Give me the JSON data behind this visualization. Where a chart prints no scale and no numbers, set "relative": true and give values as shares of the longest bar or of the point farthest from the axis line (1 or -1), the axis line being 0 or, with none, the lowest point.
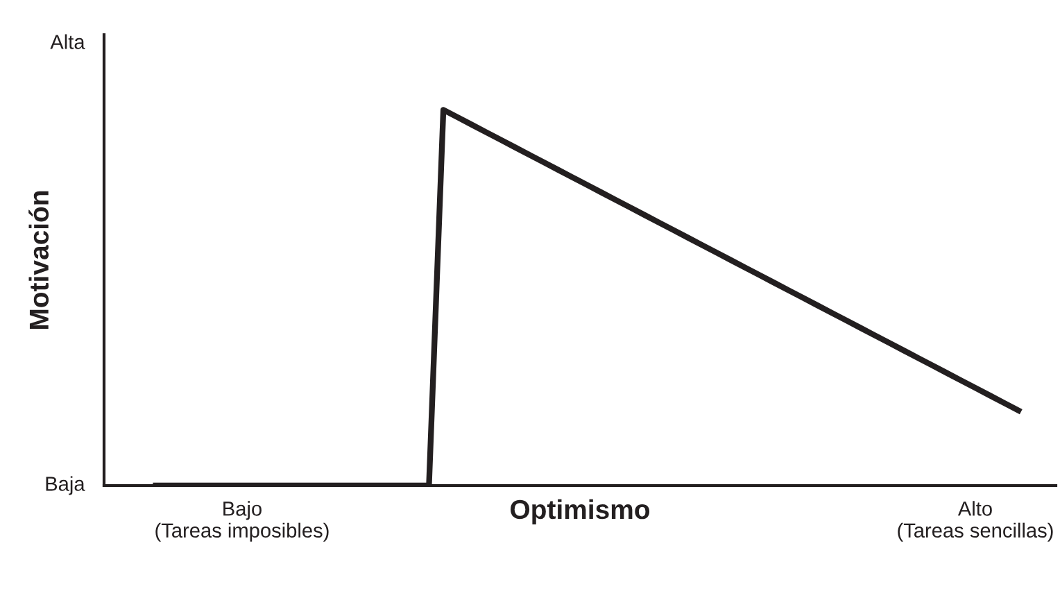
{
  "chart_data": {
    "type": "line",
    "xlabel": "Optimismo",
    "ylabel": "Motivación",
    "relative": true,
    "categories": [
      null,
      null,
      null,
      null,
      null,
      null,
      "Bajo\n(Tareas imposibles)",
      null,
      null,
      null,
      null,
      null,
      null,
      null,
      null,
      null,
      null,
      null,
      null,
      null,
      null,
      null,
      null,
      null,
      null,
      null,
      null,
      null,
      null,
      null,
      null,
      null,
      null,
      null,
      null,
      null,
      null,
      null,
      null,
      null,
      null,
      null,
      null,
      null,
      null,
      null,
      null,
      null,
      null,
      null,
      null,
      null,
      null,
      null,
      null,
      null,
      null,
      "Alto\n(Tareas sencillas)",
      null,
      null,
      null
    ],
    "series": [
      {
        "color": "#231f20",
        "values": [
          0,
          0,
          0,
          0,
          0,
          0,
          0,
          0,
          0,
          0,
          0,
          0,
          0,
          0,
          0,
          0,
          0,
          0,
          0,
          0,
          1.0,
          0.98,
          0.96,
          0.94,
          0.92,
          0.9,
          0.88,
          0.86,
          0.84,
          0.82,
          0.8,
          0.78,
          0.76,
          0.74,
          0.72,
          0.7,
          0.68,
          0.66,
          0.64,
          0.62,
          0.6,
          0.58,
          0.56,
          0.54,
          0.52,
          0.5,
          0.48,
          0.46,
          0.44,
          0.42,
          0.4,
          0.38,
          0.36,
          0.34,
          0.32,
          0.3,
          0.28,
          0.26,
          0.24,
          0.22,
          0.2
        ]
      }
    ],
    "annotations": [
      "Baja",
      "Alta"
    ],
    "grid": false,
    "legend": false,
    "marker": "none",
    "line_style": "solid"
  }
}
